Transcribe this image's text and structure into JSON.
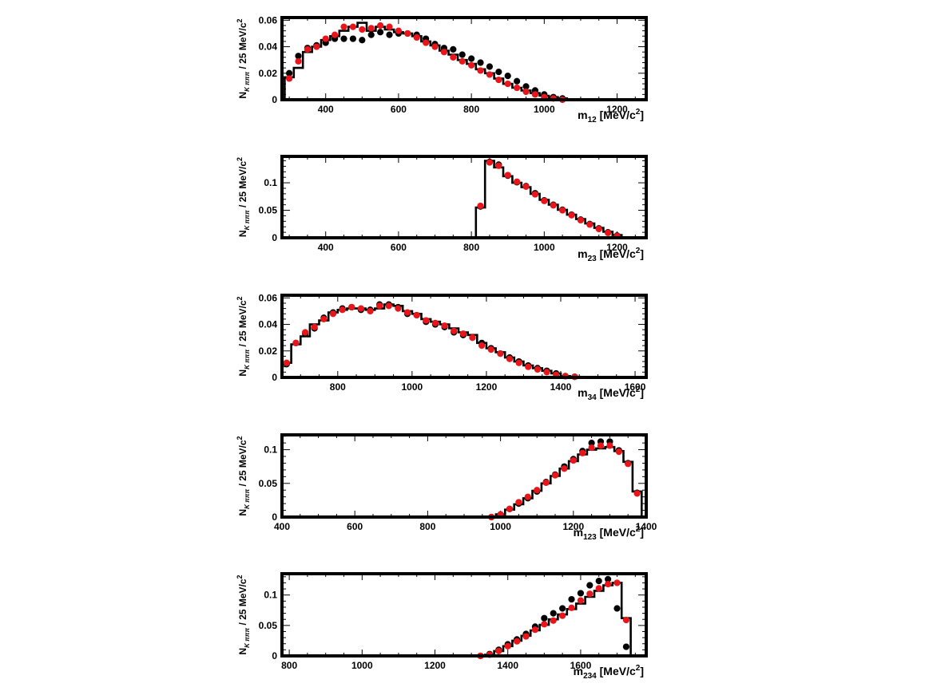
{
  "chart_data": [
    {
      "type": "scatter",
      "xlim": [
        280,
        1280
      ],
      "ylim": [
        0,
        0.062
      ],
      "xticks": [
        "400",
        "600",
        "800",
        "1000",
        "1200"
      ],
      "yticks": [
        "0",
        "0.02",
        "0.04",
        "0.06"
      ],
      "xlabel": {
        "main": "m",
        "sub": "12",
        "rest": " [MeV/c",
        "sup": "2",
        "end": "]"
      },
      "ylabel": {
        "main": "N",
        "sub": "K πππ",
        "rest": " / 25 MeV/c",
        "sup": "2"
      },
      "grid": false,
      "bin_edges": [
        287.5,
        312.5,
        337.5,
        362.5,
        387.5,
        412.5,
        437.5,
        462.5,
        487.5,
        512.5,
        537.5,
        562.5,
        587.5,
        612.5,
        637.5,
        662.5,
        687.5,
        712.5,
        737.5,
        762.5,
        787.5,
        812.5,
        837.5,
        862.5,
        887.5,
        912.5,
        937.5,
        962.5,
        987.5,
        1012.5,
        1037.5,
        1062.5
      ],
      "series": [
        {
          "style": "histogram",
          "color": "#000000",
          "values": [
            0.017,
            0.024,
            0.036,
            0.04,
            0.045,
            0.048,
            0.052,
            0.055,
            0.058,
            0.052,
            0.055,
            0.053,
            0.051,
            0.05,
            0.048,
            0.044,
            0.041,
            0.037,
            0.034,
            0.03,
            0.027,
            0.023,
            0.02,
            0.016,
            0.012,
            0.009,
            0.007,
            0.005,
            0.003,
            0.002,
            0.001
          ]
        },
        {
          "style": "markers",
          "color": "#000000",
          "values": [
            0.02,
            0.033,
            0.039,
            0.041,
            0.043,
            0.046,
            0.046,
            0.046,
            0.045,
            0.049,
            0.051,
            0.049,
            0.05,
            0.05,
            0.049,
            0.046,
            0.042,
            0.039,
            0.038,
            0.034,
            0.031,
            0.028,
            0.025,
            0.021,
            0.018,
            0.014,
            0.01,
            0.007,
            0.004,
            0.002,
            0.001
          ]
        },
        {
          "style": "markers",
          "color": "#e8151b",
          "values": [
            0.016,
            0.029,
            0.038,
            0.04,
            0.046,
            0.049,
            0.055,
            0.055,
            0.053,
            0.054,
            0.056,
            0.055,
            0.052,
            0.05,
            0.047,
            0.043,
            0.04,
            0.036,
            0.032,
            0.029,
            0.026,
            0.022,
            0.019,
            0.015,
            0.012,
            0.009,
            0.006,
            0.004,
            0.002,
            0.001,
            0.0
          ]
        }
      ]
    },
    {
      "type": "scatter",
      "xlim": [
        280,
        1280
      ],
      "ylim": [
        0,
        0.148
      ],
      "xticks": [
        "400",
        "600",
        "800",
        "1000",
        "1200"
      ],
      "yticks": [
        "0",
        "0.05",
        "0.1"
      ],
      "xlabel": {
        "main": "m",
        "sub": "23",
        "rest": " [MeV/c",
        "sup": "2",
        "end": "]"
      },
      "ylabel": {
        "main": "N",
        "sub": "K πππ",
        "rest": " / 25 MeV/c",
        "sup": "2"
      },
      "grid": false,
      "bin_edges": [
        812.5,
        837.5,
        862.5,
        887.5,
        912.5,
        937.5,
        962.5,
        987.5,
        1012.5,
        1037.5,
        1062.5,
        1087.5,
        1112.5,
        1137.5,
        1162.5,
        1187.5,
        1212.5
      ],
      "series": [
        {
          "style": "histogram",
          "color": "#000000",
          "values": [
            0.055,
            0.14,
            0.128,
            0.112,
            0.1,
            0.092,
            0.08,
            0.069,
            0.06,
            0.051,
            0.042,
            0.034,
            0.026,
            0.018,
            0.011,
            0.005
          ]
        },
        {
          "style": "markers",
          "color": "#000000",
          "values": [
            0.057,
            0.138,
            0.133,
            0.113,
            0.101,
            0.094,
            0.081,
            0.068,
            0.06,
            0.051,
            0.042,
            0.033,
            0.025,
            0.017,
            0.01,
            0.004
          ]
        },
        {
          "style": "markers",
          "color": "#e8151b",
          "values": [
            0.058,
            0.137,
            0.131,
            0.114,
            0.102,
            0.093,
            0.079,
            0.067,
            0.059,
            0.05,
            0.041,
            0.032,
            0.024,
            0.016,
            0.009,
            0.003
          ]
        }
      ]
    },
    {
      "type": "scatter",
      "xlim": [
        650,
        1630
      ],
      "ylim": [
        0,
        0.062
      ],
      "xticks": [
        "800",
        "1000",
        "1200",
        "1400",
        "1600"
      ],
      "yticks": [
        "0",
        "0.02",
        "0.04",
        "0.06"
      ],
      "xlabel": {
        "main": "m",
        "sub": "34",
        "rest": " [MeV/c",
        "sup": "2",
        "end": "]"
      },
      "ylabel": {
        "main": "N",
        "sub": "K πππ",
        "rest": " / 25 MeV/c",
        "sup": "2"
      },
      "grid": false,
      "bin_edges": [
        650,
        675,
        700,
        725,
        750,
        775,
        800,
        825,
        850,
        875,
        900,
        925,
        950,
        975,
        1000,
        1025,
        1050,
        1075,
        1100,
        1125,
        1150,
        1175,
        1200,
        1225,
        1250,
        1275,
        1300,
        1325,
        1350,
        1375,
        1400,
        1425,
        1450
      ],
      "series": [
        {
          "style": "histogram",
          "color": "#000000",
          "values": [
            0.011,
            0.025,
            0.031,
            0.04,
            0.043,
            0.049,
            0.051,
            0.052,
            0.052,
            0.051,
            0.052,
            0.055,
            0.054,
            0.05,
            0.048,
            0.044,
            0.042,
            0.04,
            0.037,
            0.034,
            0.032,
            0.026,
            0.022,
            0.019,
            0.015,
            0.012,
            0.009,
            0.007,
            0.005,
            0.003,
            0.001,
            0.0005
          ]
        },
        {
          "style": "markers",
          "color": "#000000",
          "values": [
            0.01,
            0.026,
            0.033,
            0.037,
            0.045,
            0.049,
            0.052,
            0.053,
            0.051,
            0.051,
            0.055,
            0.055,
            0.053,
            0.048,
            0.047,
            0.042,
            0.04,
            0.038,
            0.034,
            0.032,
            0.03,
            0.026,
            0.022,
            0.018,
            0.015,
            0.012,
            0.009,
            0.007,
            0.005,
            0.003,
            0.001,
            0.0005
          ]
        },
        {
          "style": "markers",
          "color": "#e8151b",
          "values": [
            0.011,
            0.026,
            0.034,
            0.038,
            0.044,
            0.048,
            0.051,
            0.053,
            0.052,
            0.05,
            0.054,
            0.054,
            0.052,
            0.049,
            0.047,
            0.043,
            0.041,
            0.039,
            0.035,
            0.033,
            0.03,
            0.024,
            0.021,
            0.018,
            0.014,
            0.011,
            0.008,
            0.006,
            0.004,
            0.002,
            0.001,
            0.0005
          ]
        }
      ]
    },
    {
      "type": "scatter",
      "xlim": [
        400,
        1400
      ],
      "ylim": [
        0,
        0.122
      ],
      "xticks": [
        "400",
        "600",
        "800",
        "1000",
        "1200",
        "1400"
      ],
      "yticks": [
        "0",
        "0.05",
        "0.1"
      ],
      "xlabel": {
        "main": "m",
        "sub": "123",
        "rest": " [MeV/c",
        "sup": "2",
        "end": "]"
      },
      "ylabel": {
        "main": "N",
        "sub": "K πππ",
        "rest": " / 25 MeV/c",
        "sup": "2"
      },
      "grid": false,
      "bin_edges": [
        962.5,
        987.5,
        1012.5,
        1037.5,
        1062.5,
        1087.5,
        1112.5,
        1137.5,
        1162.5,
        1187.5,
        1212.5,
        1237.5,
        1262.5,
        1287.5,
        1312.5,
        1337.5,
        1362.5,
        1387.5
      ],
      "series": [
        {
          "style": "histogram",
          "color": "#000000",
          "values": [
            0.0,
            0.004,
            0.011,
            0.019,
            0.028,
            0.039,
            0.05,
            0.061,
            0.072,
            0.083,
            0.093,
            0.1,
            0.102,
            0.104,
            0.098,
            0.082,
            0.038
          ]
        },
        {
          "style": "markers",
          "color": "#000000",
          "values": [
            0.0,
            0.003,
            0.012,
            0.02,
            0.028,
            0.038,
            0.052,
            0.063,
            0.075,
            0.086,
            0.098,
            0.11,
            0.112,
            0.112,
            0.099,
            0.08,
            0.036
          ]
        },
        {
          "style": "markers",
          "color": "#e8151b",
          "values": [
            0.0,
            0.004,
            0.012,
            0.022,
            0.03,
            0.04,
            0.051,
            0.062,
            0.072,
            0.084,
            0.095,
            0.103,
            0.106,
            0.106,
            0.097,
            0.079,
            0.035
          ]
        }
      ]
    },
    {
      "type": "scatter",
      "xlim": [
        780,
        1780
      ],
      "ylim": [
        0,
        0.135
      ],
      "xticks": [
        "800",
        "1000",
        "1200",
        "1400",
        "1600"
      ],
      "yticks": [
        "0",
        "0.05",
        "0.1"
      ],
      "xlabel": {
        "main": "m",
        "sub": "234",
        "rest": " [MeV/c",
        "sup": "2",
        "end": "]"
      },
      "ylabel": {
        "main": "N",
        "sub": "K πππ",
        "rest": " / 25 MeV/c",
        "sup": "2"
      },
      "grid": false,
      "bin_edges": [
        1312.5,
        1337.5,
        1362.5,
        1387.5,
        1412.5,
        1437.5,
        1462.5,
        1487.5,
        1512.5,
        1537.5,
        1562.5,
        1587.5,
        1612.5,
        1637.5,
        1662.5,
        1687.5,
        1712.5,
        1737.5
      ],
      "series": [
        {
          "style": "histogram",
          "color": "#000000",
          "values": [
            0.0,
            0.002,
            0.008,
            0.016,
            0.025,
            0.033,
            0.042,
            0.051,
            0.06,
            0.068,
            0.077,
            0.086,
            0.097,
            0.107,
            0.116,
            0.12,
            0.062
          ]
        },
        {
          "style": "markers",
          "color": "#000000",
          "values": [
            0.0,
            0.003,
            0.01,
            0.019,
            0.027,
            0.036,
            0.048,
            0.062,
            0.07,
            0.078,
            0.093,
            0.103,
            0.116,
            0.123,
            0.126,
            0.078,
            0.015
          ]
        },
        {
          "style": "markers",
          "color": "#e8151b",
          "values": [
            0.0,
            0.002,
            0.008,
            0.016,
            0.024,
            0.032,
            0.043,
            0.052,
            0.058,
            0.066,
            0.079,
            0.091,
            0.102,
            0.111,
            0.118,
            0.12,
            0.059
          ]
        }
      ]
    }
  ]
}
